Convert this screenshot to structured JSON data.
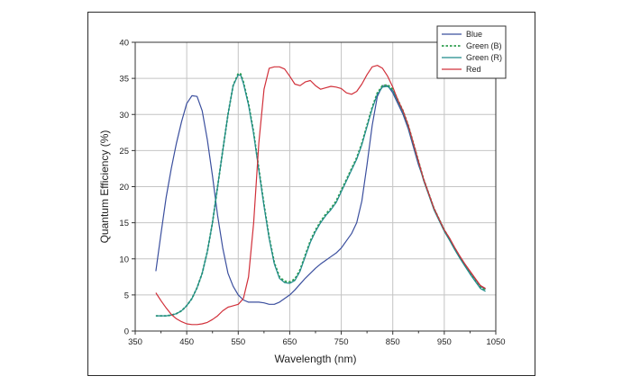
{
  "chart_data": {
    "type": "line",
    "title": "",
    "xlabel": "Wavelength (nm)",
    "ylabel": "Quantum Efficiency (%)",
    "xlim": [
      350,
      1050
    ],
    "ylim": [
      0,
      40
    ],
    "x_ticks": [
      350,
      450,
      550,
      650,
      750,
      850,
      950,
      1050
    ],
    "x_minor_ticks": [
      400,
      500,
      600,
      700,
      800,
      900,
      1000
    ],
    "y_ticks": [
      0,
      5,
      10,
      15,
      20,
      25,
      30,
      35,
      40
    ],
    "grid": true,
    "legend": "top-right",
    "series": [
      {
        "name": "Blue",
        "color": "#3b4f9e",
        "dash": "solid",
        "points": [
          [
            390,
            8.3
          ],
          [
            400,
            13.5
          ],
          [
            410,
            18.5
          ],
          [
            420,
            22.5
          ],
          [
            430,
            26
          ],
          [
            440,
            29
          ],
          [
            450,
            31.5
          ],
          [
            460,
            32.6
          ],
          [
            470,
            32.5
          ],
          [
            480,
            30.5
          ],
          [
            490,
            26.5
          ],
          [
            500,
            21.5
          ],
          [
            510,
            16
          ],
          [
            520,
            11.5
          ],
          [
            530,
            8
          ],
          [
            540,
            6.2
          ],
          [
            550,
            5
          ],
          [
            560,
            4.3
          ],
          [
            570,
            4
          ],
          [
            580,
            4
          ],
          [
            590,
            4
          ],
          [
            600,
            3.9
          ],
          [
            610,
            3.7
          ],
          [
            620,
            3.7
          ],
          [
            630,
            4
          ],
          [
            640,
            4.5
          ],
          [
            650,
            5
          ],
          [
            660,
            5.7
          ],
          [
            670,
            6.5
          ],
          [
            680,
            7.3
          ],
          [
            690,
            8
          ],
          [
            700,
            8.7
          ],
          [
            710,
            9.3
          ],
          [
            720,
            9.8
          ],
          [
            730,
            10.3
          ],
          [
            740,
            10.8
          ],
          [
            750,
            11.5
          ],
          [
            760,
            12.5
          ],
          [
            770,
            13.5
          ],
          [
            780,
            15
          ],
          [
            790,
            18
          ],
          [
            800,
            23
          ],
          [
            810,
            28.5
          ],
          [
            820,
            32.5
          ],
          [
            830,
            34
          ],
          [
            840,
            34
          ],
          [
            850,
            33
          ],
          [
            860,
            31.5
          ],
          [
            870,
            30
          ],
          [
            880,
            28
          ],
          [
            890,
            25.5
          ],
          [
            900,
            23
          ],
          [
            910,
            21
          ],
          [
            920,
            19
          ],
          [
            930,
            17
          ],
          [
            940,
            15.5
          ],
          [
            950,
            14
          ],
          [
            960,
            12.8
          ],
          [
            970,
            11.5
          ],
          [
            980,
            10.3
          ],
          [
            990,
            9.2
          ],
          [
            1000,
            8.2
          ],
          [
            1010,
            7.2
          ],
          [
            1020,
            6.2
          ],
          [
            1030,
            5.8
          ]
        ]
      },
      {
        "name": "Green (B)",
        "color": "#2e9e4e",
        "dash": "dotted",
        "points": [
          [
            390,
            2.1
          ],
          [
            400,
            2.1
          ],
          [
            410,
            2.1
          ],
          [
            420,
            2.2
          ],
          [
            430,
            2.4
          ],
          [
            440,
            2.8
          ],
          [
            450,
            3.5
          ],
          [
            460,
            4.5
          ],
          [
            470,
            6
          ],
          [
            480,
            8
          ],
          [
            490,
            11
          ],
          [
            500,
            15
          ],
          [
            510,
            20
          ],
          [
            520,
            25
          ],
          [
            530,
            30
          ],
          [
            540,
            34
          ],
          [
            550,
            35.7
          ],
          [
            555,
            35.6
          ],
          [
            560,
            34.5
          ],
          [
            570,
            31.5
          ],
          [
            580,
            27.5
          ],
          [
            590,
            22.5
          ],
          [
            600,
            17.5
          ],
          [
            610,
            13
          ],
          [
            620,
            9.5
          ],
          [
            630,
            7.5
          ],
          [
            640,
            6.9
          ],
          [
            650,
            6.8
          ],
          [
            660,
            7.2
          ],
          [
            670,
            8.5
          ],
          [
            680,
            10.5
          ],
          [
            690,
            12.5
          ],
          [
            700,
            14
          ],
          [
            710,
            15.2
          ],
          [
            720,
            16.2
          ],
          [
            730,
            17
          ],
          [
            740,
            18
          ],
          [
            750,
            19.5
          ],
          [
            760,
            21
          ],
          [
            770,
            22.5
          ],
          [
            780,
            24
          ],
          [
            790,
            26
          ],
          [
            800,
            28.5
          ],
          [
            810,
            31
          ],
          [
            820,
            33
          ],
          [
            830,
            34
          ],
          [
            840,
            34.1
          ],
          [
            850,
            33.5
          ],
          [
            860,
            32
          ],
          [
            870,
            30.5
          ],
          [
            880,
            28.5
          ],
          [
            890,
            26
          ],
          [
            900,
            23.5
          ],
          [
            910,
            21
          ],
          [
            920,
            19
          ],
          [
            930,
            17
          ],
          [
            940,
            15.5
          ],
          [
            950,
            14
          ],
          [
            960,
            12.8
          ],
          [
            970,
            11.5
          ],
          [
            980,
            10.3
          ],
          [
            990,
            9.2
          ],
          [
            1000,
            8.1
          ],
          [
            1010,
            7.1
          ],
          [
            1020,
            6.1
          ],
          [
            1030,
            5.7
          ]
        ]
      },
      {
        "name": "Green (R)",
        "color": "#1f8a8a",
        "dash": "solid",
        "points": [
          [
            390,
            2.1
          ],
          [
            400,
            2.1
          ],
          [
            410,
            2.1
          ],
          [
            420,
            2.2
          ],
          [
            430,
            2.4
          ],
          [
            440,
            2.8
          ],
          [
            450,
            3.5
          ],
          [
            460,
            4.5
          ],
          [
            470,
            6
          ],
          [
            480,
            8
          ],
          [
            490,
            11
          ],
          [
            500,
            15
          ],
          [
            510,
            20
          ],
          [
            520,
            25
          ],
          [
            530,
            30
          ],
          [
            540,
            34
          ],
          [
            550,
            35.5
          ],
          [
            555,
            35.4
          ],
          [
            560,
            34.3
          ],
          [
            570,
            31.3
          ],
          [
            580,
            27.3
          ],
          [
            590,
            22.3
          ],
          [
            600,
            17.3
          ],
          [
            610,
            12.8
          ],
          [
            620,
            9.3
          ],
          [
            630,
            7.3
          ],
          [
            640,
            6.7
          ],
          [
            650,
            6.6
          ],
          [
            660,
            7
          ],
          [
            670,
            8.3
          ],
          [
            680,
            10.3
          ],
          [
            690,
            12.3
          ],
          [
            700,
            13.8
          ],
          [
            710,
            15
          ],
          [
            720,
            16
          ],
          [
            730,
            16.8
          ],
          [
            740,
            17.8
          ],
          [
            750,
            19.3
          ],
          [
            760,
            20.8
          ],
          [
            770,
            22.3
          ],
          [
            780,
            23.8
          ],
          [
            790,
            25.8
          ],
          [
            800,
            28.3
          ],
          [
            810,
            30.8
          ],
          [
            820,
            32.8
          ],
          [
            830,
            33.8
          ],
          [
            840,
            33.9
          ],
          [
            850,
            33.3
          ],
          [
            860,
            31.8
          ],
          [
            870,
            30.3
          ],
          [
            880,
            28.3
          ],
          [
            890,
            25.8
          ],
          [
            900,
            23.3
          ],
          [
            910,
            20.8
          ],
          [
            920,
            18.8
          ],
          [
            930,
            16.8
          ],
          [
            940,
            15.3
          ],
          [
            950,
            13.8
          ],
          [
            960,
            12.6
          ],
          [
            970,
            11.3
          ],
          [
            980,
            10.1
          ],
          [
            990,
            9
          ],
          [
            1000,
            7.9
          ],
          [
            1010,
            6.9
          ],
          [
            1020,
            5.9
          ],
          [
            1030,
            5.5
          ]
        ]
      },
      {
        "name": "Red",
        "color": "#d1303a",
        "dash": "solid",
        "points": [
          [
            390,
            5.3
          ],
          [
            400,
            4.2
          ],
          [
            410,
            3.2
          ],
          [
            420,
            2.3
          ],
          [
            430,
            1.7
          ],
          [
            440,
            1.3
          ],
          [
            450,
            1
          ],
          [
            460,
            0.9
          ],
          [
            470,
            0.9
          ],
          [
            480,
            1
          ],
          [
            490,
            1.2
          ],
          [
            500,
            1.6
          ],
          [
            510,
            2.1
          ],
          [
            520,
            2.8
          ],
          [
            530,
            3.3
          ],
          [
            540,
            3.5
          ],
          [
            550,
            3.7
          ],
          [
            560,
            4.5
          ],
          [
            570,
            7.5
          ],
          [
            580,
            15
          ],
          [
            590,
            26
          ],
          [
            600,
            33.5
          ],
          [
            610,
            36.4
          ],
          [
            620,
            36.6
          ],
          [
            630,
            36.6
          ],
          [
            640,
            36.3
          ],
          [
            650,
            35.3
          ],
          [
            660,
            34.2
          ],
          [
            670,
            34
          ],
          [
            680,
            34.5
          ],
          [
            690,
            34.7
          ],
          [
            700,
            34
          ],
          [
            710,
            33.5
          ],
          [
            720,
            33.7
          ],
          [
            730,
            33.9
          ],
          [
            740,
            33.8
          ],
          [
            750,
            33.6
          ],
          [
            760,
            33
          ],
          [
            770,
            32.8
          ],
          [
            780,
            33.2
          ],
          [
            790,
            34.2
          ],
          [
            800,
            35.5
          ],
          [
            810,
            36.6
          ],
          [
            820,
            36.8
          ],
          [
            830,
            36.4
          ],
          [
            840,
            35.3
          ],
          [
            850,
            33.8
          ],
          [
            860,
            32
          ],
          [
            870,
            30.5
          ],
          [
            880,
            28.5
          ],
          [
            890,
            26
          ],
          [
            900,
            23.5
          ],
          [
            910,
            21
          ],
          [
            920,
            19
          ],
          [
            930,
            17
          ],
          [
            940,
            15.5
          ],
          [
            950,
            14
          ],
          [
            960,
            12.9
          ],
          [
            970,
            11.6
          ],
          [
            980,
            10.4
          ],
          [
            990,
            9.3
          ],
          [
            1000,
            8.3
          ],
          [
            1010,
            7.3
          ],
          [
            1020,
            6.3
          ],
          [
            1030,
            5.9
          ]
        ]
      }
    ]
  }
}
